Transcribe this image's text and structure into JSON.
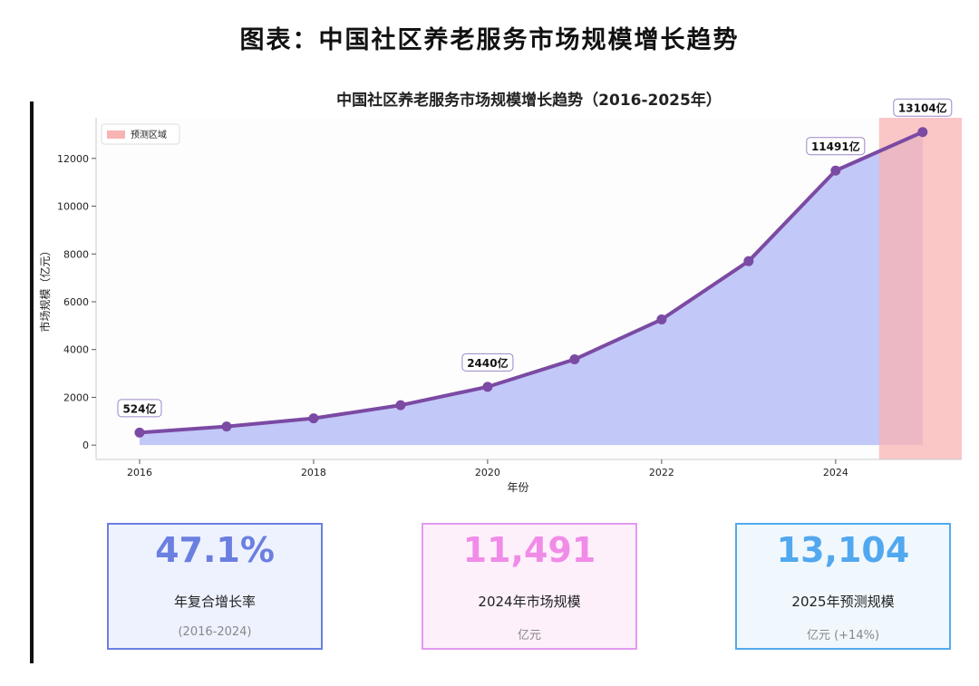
{
  "page_title": "图表：中国社区养老服务市场规模增长趋势",
  "chart_data": {
    "type": "area",
    "title": "中国社区养老服务市场规模增长趋势（2016-2025年）",
    "xlabel": "年份",
    "ylabel": "市场规模（亿元）",
    "x": [
      2016,
      2017,
      2018,
      2019,
      2020,
      2021,
      2022,
      2023,
      2024,
      2025
    ],
    "values": [
      524,
      780,
      1120,
      1670,
      2440,
      3590,
      5260,
      7700,
      11491,
      13104
    ],
    "x_ticks": [
      "2016",
      "2018",
      "2020",
      "2022",
      "2024"
    ],
    "y_ticks": [
      "0",
      "2000",
      "4000",
      "6000",
      "8000",
      "10000",
      "12000"
    ],
    "xlim": [
      2015.5,
      2025.45
    ],
    "ylim": [
      -600,
      13700
    ],
    "annotations": [
      {
        "x": 2016,
        "y": 524,
        "text": "524亿"
      },
      {
        "x": 2020,
        "y": 2440,
        "text": "2440亿"
      },
      {
        "x": 2024,
        "y": 11491,
        "text": "11491亿"
      },
      {
        "x": 2025,
        "y": 13104,
        "text": "13104亿"
      }
    ],
    "forecast_region": {
      "x_start": 2024.5,
      "x_end": 2025.45,
      "legend_label": "预测区域"
    },
    "legend_position": "top-left",
    "colors": {
      "line": "#7b4aa3",
      "fill": "#b7bef7",
      "forecast": "#f8b3b3"
    },
    "grid": false
  },
  "cards": [
    {
      "value": "47.1%",
      "label": "年复合增长率",
      "sub": "(2016-2024)",
      "color": "#6b7fe0",
      "border": "#6b7fe0",
      "bg": "#eef2fe"
    },
    {
      "value": "11,491",
      "label": "2024年市场规模",
      "sub": "亿元",
      "color": "#f08ce8",
      "border": "#e29af0",
      "bg": "#fdf0fb"
    },
    {
      "value": "13,104",
      "label": "2025年预测规模",
      "sub": "亿元 (+14%)",
      "color": "#52a8ef",
      "border": "#52aaef",
      "bg": "#f0f8fe"
    }
  ]
}
